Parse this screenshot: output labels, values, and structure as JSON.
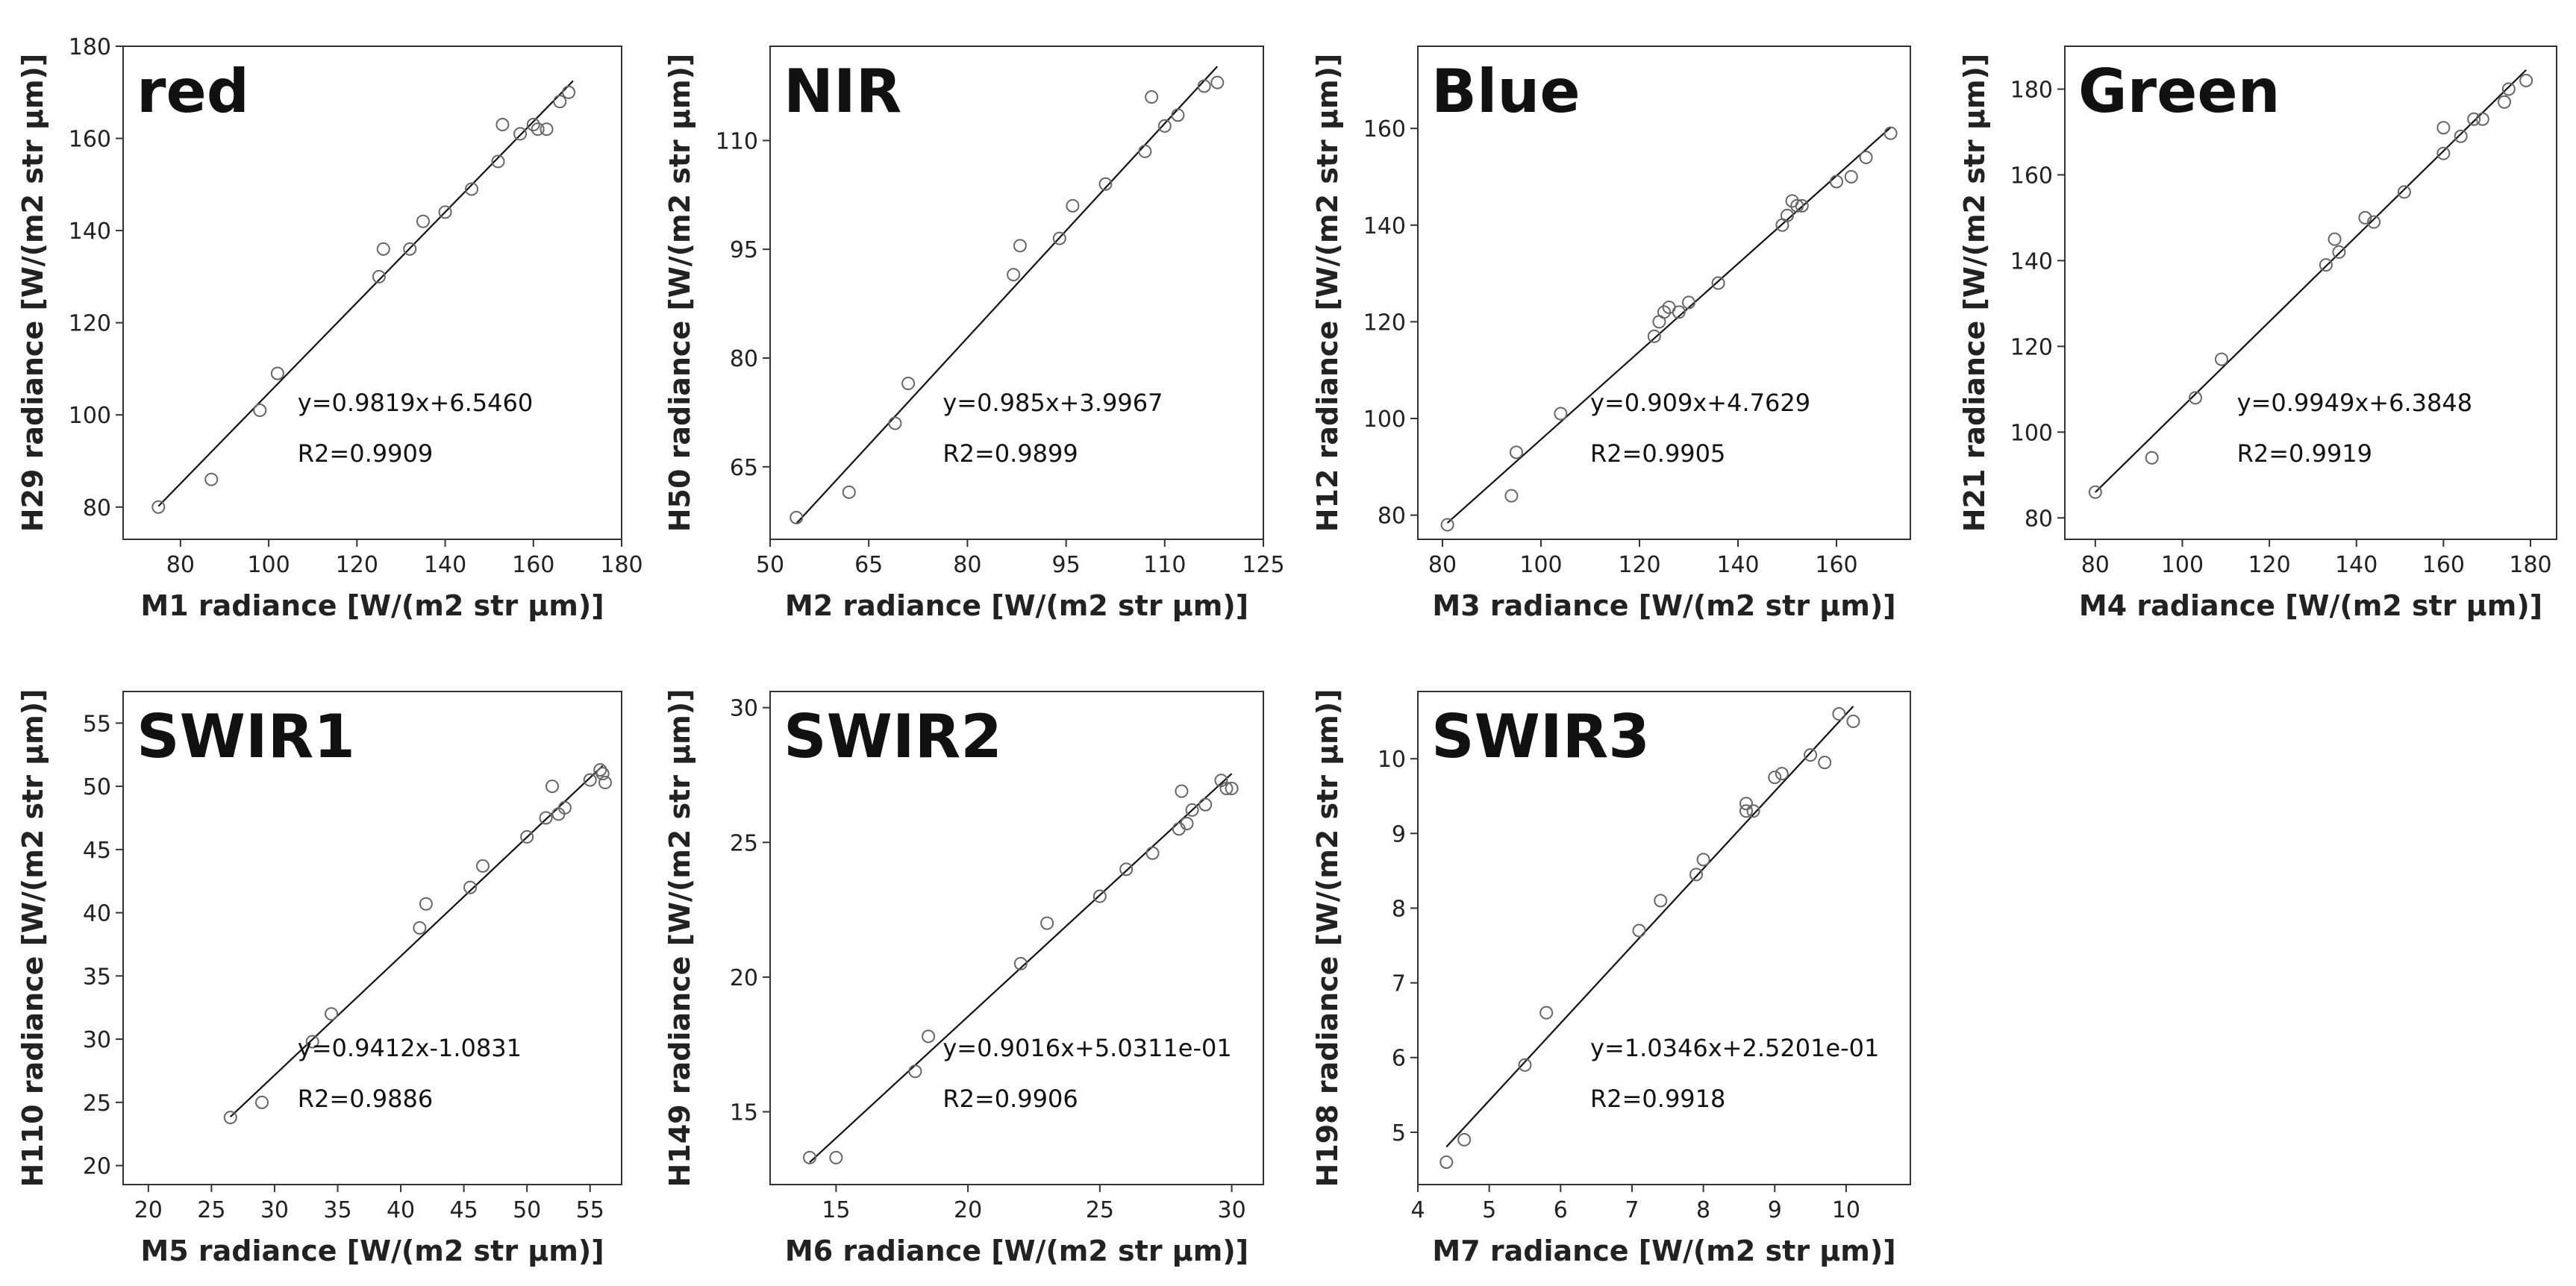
{
  "figure_title": "",
  "chart_data": [
    {
      "type": "scatter",
      "title": "red",
      "xlabel": "M1 radiance [W/(m2 str µm)]",
      "ylabel": "H29 radiance [W/(m2 str µm)]",
      "xlim": [
        67,
        180
      ],
      "ylim": [
        73,
        180
      ],
      "xticks": [
        80,
        100,
        120,
        140,
        160,
        180
      ],
      "yticks": [
        80,
        100,
        120,
        140,
        160,
        180
      ],
      "equation": "y=0.9819x+6.5460",
      "r2": "R2=0.9909",
      "fit": {
        "slope": 0.9819,
        "intercept": 6.546,
        "x_range": [
          75,
          169
        ]
      },
      "x": [
        75,
        87,
        98,
        102,
        125,
        126,
        132,
        135,
        140,
        146,
        152,
        153,
        157,
        160,
        161,
        163,
        166,
        168
      ],
      "y": [
        80,
        86,
        101,
        109,
        130,
        136,
        136,
        142,
        144,
        149,
        155,
        163,
        161,
        163,
        162,
        162,
        168,
        170
      ]
    },
    {
      "type": "scatter",
      "title": "NIR",
      "xlabel": "M2 radiance [W/(m2 str µm)]",
      "ylabel": "H50 radiance [W/(m2 str µm)]",
      "xlim": [
        50,
        125
      ],
      "ylim": [
        55,
        123
      ],
      "xticks": [
        50,
        65,
        80,
        95,
        110,
        125
      ],
      "yticks": [
        65,
        80,
        95,
        110
      ],
      "equation": "y=0.985x+3.9967",
      "r2": "R2=0.9899",
      "fit": {
        "slope": 0.985,
        "intercept": 3.9967,
        "x_range": [
          54,
          118
        ]
      },
      "x": [
        54,
        62,
        69,
        71,
        87,
        88,
        94,
        96,
        101,
        107,
        108,
        110,
        112,
        116,
        118
      ],
      "y": [
        58,
        61.5,
        71,
        76.5,
        91.5,
        95.5,
        96.5,
        101,
        104,
        108.5,
        116,
        112,
        113.5,
        117.5,
        118
      ]
    },
    {
      "type": "scatter",
      "title": "Blue",
      "xlabel": "M3 radiance [W/(m2 str µm)]",
      "ylabel": "H12 radiance [W/(m2 str µm)]",
      "xlim": [
        75,
        175
      ],
      "ylim": [
        75,
        177
      ],
      "xticks": [
        80,
        100,
        120,
        140,
        160
      ],
      "yticks": [
        80,
        100,
        120,
        140,
        160
      ],
      "equation": "y=0.909x+4.7629",
      "r2": "R2=0.9905",
      "fit": {
        "slope": 0.909,
        "intercept": 4.7629,
        "x_range": [
          81,
          171
        ]
      },
      "x": [
        81,
        94,
        95,
        104,
        123,
        124,
        125,
        126,
        128,
        130,
        136,
        149,
        150,
        151,
        152,
        153,
        160,
        163,
        166,
        171
      ],
      "y": [
        78,
        84,
        93,
        101,
        117,
        120,
        122,
        123,
        122,
        124,
        128,
        140,
        142,
        145,
        144,
        144,
        149,
        150,
        154,
        159
      ]
    },
    {
      "type": "scatter",
      "title": "Green",
      "xlabel": "M4 radiance [W/(m2 str µm)]",
      "ylabel": "H21 radiance [W/(m2 str µm)]",
      "xlim": [
        73,
        186
      ],
      "ylim": [
        75,
        190
      ],
      "xticks": [
        80,
        100,
        120,
        140,
        160,
        180
      ],
      "yticks": [
        80,
        100,
        120,
        140,
        160,
        180
      ],
      "equation": "y=0.9949x+6.3848",
      "r2": "R2=0.9919",
      "fit": {
        "slope": 0.9949,
        "intercept": 6.3848,
        "x_range": [
          80,
          179
        ]
      },
      "x": [
        80,
        93,
        103,
        109,
        133,
        135,
        136,
        142,
        144,
        151,
        160,
        160,
        164,
        167,
        169,
        174,
        175,
        179
      ],
      "y": [
        86,
        94,
        108,
        117,
        139,
        145,
        142,
        150,
        149,
        156,
        165,
        171,
        169,
        173,
        173,
        177,
        180,
        182
      ]
    },
    {
      "type": "scatter",
      "title": "SWIR1",
      "xlabel": "M5 radiance [W/(m2 str µm)]",
      "ylabel": "H110 radiance [W/(m2 str µm)]",
      "xlim": [
        18,
        57.5
      ],
      "ylim": [
        18.5,
        57.5
      ],
      "xticks": [
        20,
        25,
        30,
        35,
        40,
        45,
        50,
        55
      ],
      "yticks": [
        20,
        25,
        30,
        35,
        40,
        45,
        50,
        55
      ],
      "equation": "y=0.9412x-1.0831",
      "r2": "R2=0.9886",
      "fit": {
        "slope": 0.9412,
        "intercept": -1.0831,
        "x_range": [
          26.5,
          56
        ]
      },
      "x": [
        26.5,
        29,
        33,
        34.5,
        41.5,
        42,
        45.5,
        46.5,
        50,
        51.5,
        52,
        52.5,
        53,
        55,
        55.8,
        56,
        56.2
      ],
      "y": [
        23.8,
        25,
        29.8,
        32,
        38.8,
        40.7,
        42,
        43.7,
        46,
        47.5,
        50,
        47.8,
        48.3,
        50.5,
        51.3,
        51,
        50.3
      ]
    },
    {
      "type": "scatter",
      "title": "SWIR2",
      "xlabel": "M6 radiance [W/(m2 str µm)]",
      "ylabel": "H149 radiance [W/(m2 str µm)]",
      "xlim": [
        12.5,
        31.2
      ],
      "ylim": [
        12.3,
        30.6
      ],
      "xticks": [
        15,
        20,
        25,
        30
      ],
      "yticks": [
        15,
        20,
        25,
        30
      ],
      "equation": "y=0.9016x+5.0311e-01",
      "r2": "R2=0.9906",
      "fit": {
        "slope": 0.9016,
        "intercept": 0.50311,
        "x_range": [
          14,
          30
        ]
      },
      "x": [
        14,
        15,
        18,
        18.5,
        22,
        23,
        25,
        26,
        27,
        28,
        28.1,
        28.3,
        28.5,
        29,
        29.6,
        29.8,
        30
      ],
      "y": [
        13.3,
        13.3,
        16.5,
        17.8,
        20.5,
        22,
        23,
        24,
        24.6,
        25.5,
        26.9,
        25.7,
        26.2,
        26.4,
        27.3,
        27,
        27
      ]
    },
    {
      "type": "scatter",
      "title": "SWIR3",
      "xlabel": "M7 radiance [W/(m2 str µm)]",
      "ylabel": "H198 radiance [W/(m2 str µm)]",
      "xlim": [
        4.0,
        10.9
      ],
      "ylim": [
        4.3,
        10.9
      ],
      "xticks": [
        4,
        5,
        6,
        7,
        8,
        9,
        10
      ],
      "yticks": [
        5,
        6,
        7,
        8,
        9,
        10
      ],
      "equation": "y=1.0346x+2.5201e-01",
      "r2": "R2=0.9918",
      "fit": {
        "slope": 1.0346,
        "intercept": 0.25201,
        "x_range": [
          4.4,
          10.1
        ]
      },
      "x": [
        4.4,
        4.65,
        5.5,
        5.8,
        7.1,
        7.4,
        7.9,
        8.0,
        8.6,
        8.6,
        8.7,
        9.0,
        9.1,
        9.5,
        9.7,
        9.9,
        10.1
      ],
      "y": [
        4.6,
        4.9,
        5.9,
        6.6,
        7.7,
        8.1,
        8.45,
        8.65,
        9.4,
        9.3,
        9.3,
        9.75,
        9.8,
        10.05,
        9.95,
        10.6,
        10.5
      ]
    }
  ]
}
